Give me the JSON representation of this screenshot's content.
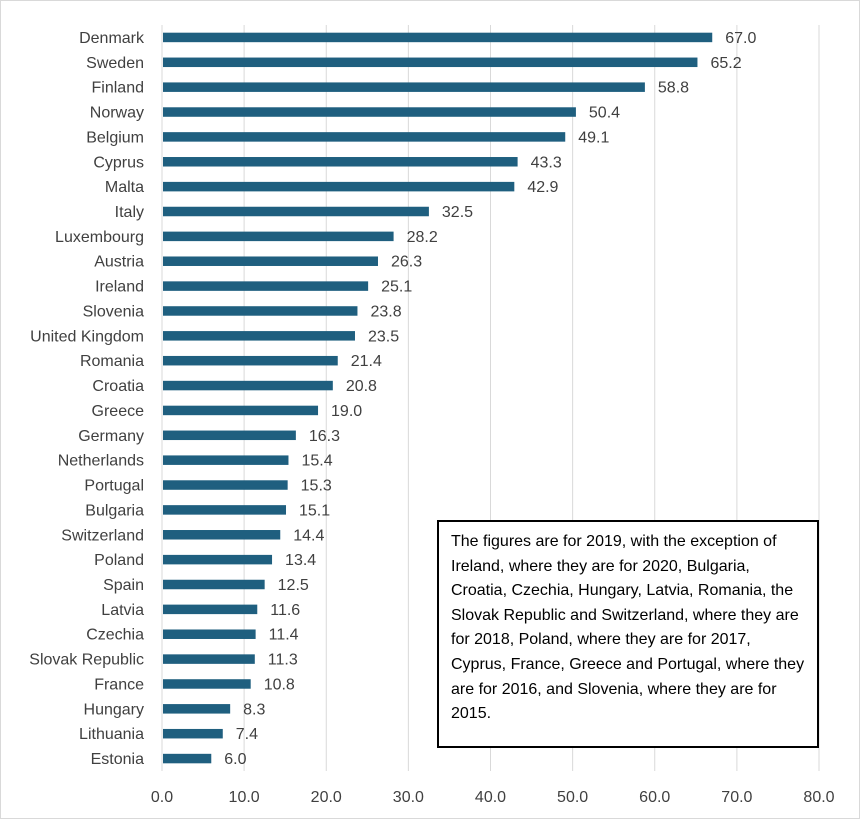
{
  "chart_data": {
    "type": "bar",
    "orientation": "horizontal",
    "categories": [
      "Denmark",
      "Sweden",
      "Finland",
      "Norway",
      "Belgium",
      "Cyprus",
      "Malta",
      "Italy",
      "Luxembourg",
      "Austria",
      "Ireland",
      "Slovenia",
      "United Kingdom",
      "Romania",
      "Croatia",
      "Greece",
      "Germany",
      "Netherlands",
      "Portugal",
      "Bulgaria",
      "Switzerland",
      "Poland",
      "Spain",
      "Latvia",
      "Czechia",
      "Slovak Republic",
      "France",
      "Hungary",
      "Lithuania",
      "Estonia"
    ],
    "values": [
      67.0,
      65.2,
      58.8,
      50.4,
      49.1,
      43.3,
      42.9,
      32.5,
      28.2,
      26.3,
      25.1,
      23.8,
      23.5,
      21.4,
      20.8,
      19.0,
      16.3,
      15.4,
      15.3,
      15.1,
      14.4,
      13.4,
      12.5,
      11.6,
      11.4,
      11.3,
      10.8,
      8.3,
      7.4,
      6.0
    ],
    "xlim": [
      0,
      80
    ],
    "xticks": [
      "0.0",
      "10.0",
      "20.0",
      "30.0",
      "40.0",
      "50.0",
      "60.0",
      "70.0",
      "80.0"
    ],
    "grid": "vertical",
    "title": "",
    "xlabel": "",
    "ylabel": ""
  },
  "note": {
    "text": "The figures are for 2019, with the exception of Ireland, where they are for 2020, Bulgaria, Croatia, Czechia, Hungary, Latvia, Romania, the Slovak Republic and Switzerland, where they are for 2018, Poland, where they are for 2017, Cyprus, France, Greece and Portugal, where they are for 2016, and Slovenia, where they are for 2015."
  },
  "colors": {
    "bar": "#1f5f7f",
    "grid": "#d9d9d9",
    "text": "#404040"
  }
}
